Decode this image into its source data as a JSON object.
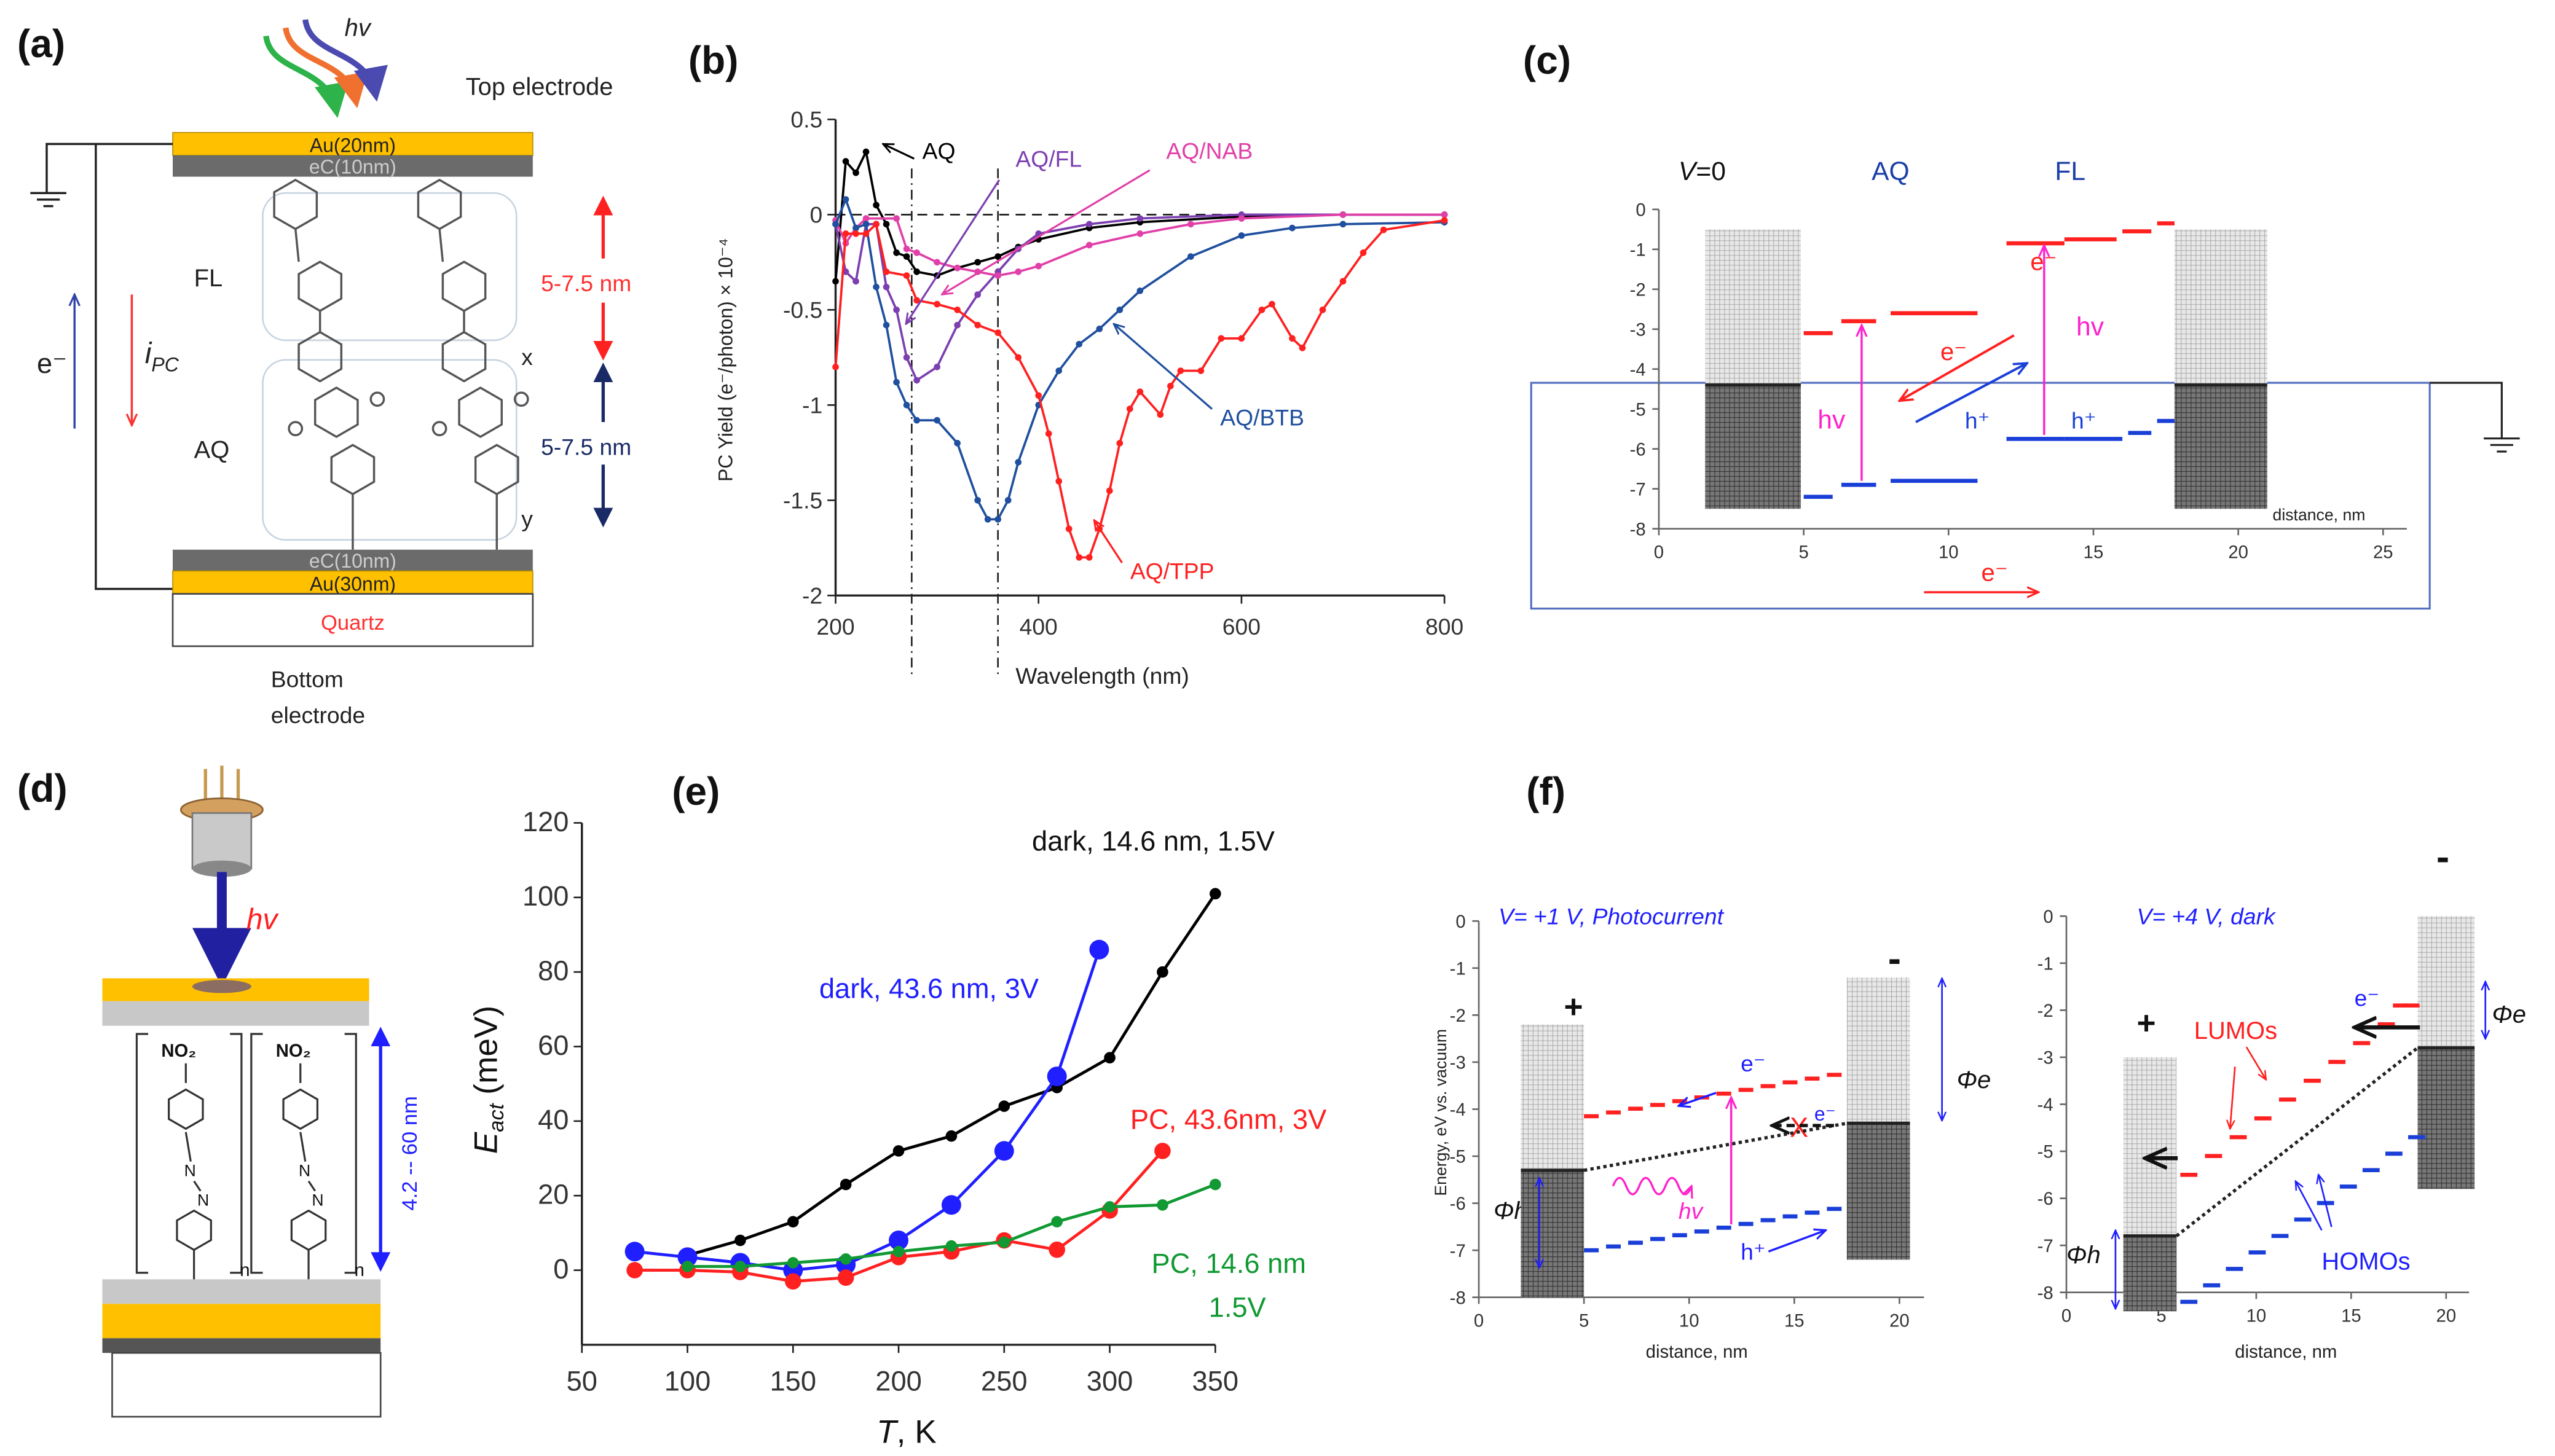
{
  "panels": {
    "a": {
      "label": "(a)",
      "hv": "hv",
      "top_electrode": "Top electrode",
      "au_top": "Au(20nm)",
      "ec_top": "eC(10nm)",
      "fl": "FL",
      "aq": "AQ",
      "ec_bottom": "eC(10nm)",
      "au_bottom": "Au(30nm)",
      "quartz": "Quartz",
      "bottom_electrode_1": "Bottom",
      "bottom_electrode_2": "electrode",
      "e_minus": "e⁻",
      "ipc": "i",
      "ipc_sub": "PC",
      "dim_top": "5-7.5 nm",
      "dim_bottom": "5-7.5 nm",
      "x": "x",
      "y": "y"
    },
    "b": {
      "label": "(b)"
    },
    "c": {
      "label": "(c)",
      "v": "V",
      "v0": "=0",
      "aq": "AQ",
      "fl": "FL",
      "e_minus": "e⁻",
      "hv": "hv",
      "h_plus": "h⁺",
      "xlabel": "distance, nm",
      "yticks": [
        "0",
        "-1",
        "-2",
        "-3",
        "-4",
        "-5",
        "-6",
        "-7",
        "-8"
      ],
      "xticks": [
        "0",
        "5",
        "10",
        "15",
        "20",
        "25"
      ]
    },
    "d": {
      "label": "(d)",
      "hv": "hv",
      "no2": "NO₂",
      "n_atom": "N",
      "n": "n",
      "dim": "4.2 -- 60 nm"
    },
    "e": {
      "label": "(e)"
    },
    "f": {
      "label": "(f)",
      "left": {
        "title": "V= +1 V, Photocurrent",
        "ylabel": "Energy, eV vs. vacuum",
        "xlabel": "distance, nm",
        "plus": "+",
        "minus": "-",
        "phi_h": "Φh",
        "phi_e": "Φe",
        "e_minus": "e⁻",
        "h_plus": "h⁺",
        "hv": "hv",
        "cross": "X",
        "yticks": [
          "0",
          "-1",
          "-2",
          "-3",
          "-4",
          "-5",
          "-6",
          "-7",
          "-8"
        ],
        "xticks": [
          "0",
          "5",
          "10",
          "15",
          "20"
        ]
      },
      "right": {
        "title": "V= +4 V, dark",
        "xlabel": "distance, nm",
        "plus": "+",
        "minus": "-",
        "phi_h": "Φh",
        "phi_e": "Φe",
        "e_minus": "e⁻",
        "lumos": "LUMOs",
        "homos": "HOMOs",
        "yticks": [
          "0",
          "-1",
          "-2",
          "-3",
          "-4",
          "-5",
          "-6",
          "-7",
          "-8"
        ],
        "xticks": [
          "0",
          "5",
          "10",
          "15",
          "20"
        ]
      }
    }
  },
  "colors": {
    "lumo": "#ff2020",
    "homo": "#1a3fd8",
    "gold": "#ffc000",
    "electrode_grey": "#6b6b6b",
    "magenta": "#ff22cc"
  },
  "chart_data": [
    {
      "type": "line",
      "panel": "b",
      "xlabel": "Wavelength (nm)",
      "ylabel": "PC Yield (e⁻/photon) × 10⁻⁴",
      "xlim": [
        200,
        800
      ],
      "ylim": [
        -2,
        0.5
      ],
      "xticks": [
        200,
        400,
        600,
        800
      ],
      "yticks": [
        0.5,
        0,
        -0.5,
        -1,
        -1.5,
        -2
      ],
      "reference_lines": {
        "horizontal": 0,
        "vertical": [
          275,
          360
        ]
      },
      "series": [
        {
          "name": "AQ",
          "color": "#000000",
          "points": [
            [
              200,
              -0.35
            ],
            [
              210,
              0.28
            ],
            [
              220,
              0.22
            ],
            [
              230,
              0.33
            ],
            [
              240,
              0.05
            ],
            [
              250,
              -0.05
            ],
            [
              260,
              -0.2
            ],
            [
              270,
              -0.22
            ],
            [
              280,
              -0.3
            ],
            [
              300,
              -0.32
            ],
            [
              320,
              -0.28
            ],
            [
              340,
              -0.25
            ],
            [
              360,
              -0.22
            ],
            [
              380,
              -0.17
            ],
            [
              400,
              -0.13
            ],
            [
              450,
              -0.07
            ],
            [
              500,
              -0.04
            ],
            [
              600,
              -0.01
            ],
            [
              700,
              0
            ],
            [
              800,
              0
            ]
          ]
        },
        {
          "name": "AQ/FL",
          "color": "#7b3fb0",
          "points": [
            [
              200,
              -0.05
            ],
            [
              210,
              -0.3
            ],
            [
              220,
              -0.35
            ],
            [
              230,
              -0.05
            ],
            [
              240,
              -0.05
            ],
            [
              250,
              -0.38
            ],
            [
              260,
              -0.5
            ],
            [
              270,
              -0.75
            ],
            [
              280,
              -0.87
            ],
            [
              300,
              -0.8
            ],
            [
              320,
              -0.58
            ],
            [
              340,
              -0.42
            ],
            [
              360,
              -0.3
            ],
            [
              380,
              -0.18
            ],
            [
              400,
              -0.1
            ],
            [
              450,
              -0.05
            ],
            [
              500,
              -0.02
            ],
            [
              600,
              0
            ],
            [
              800,
              0
            ]
          ]
        },
        {
          "name": "AQ/NAB",
          "color": "#e040a8",
          "points": [
            [
              200,
              -0.03
            ],
            [
              210,
              -0.15
            ],
            [
              220,
              -0.07
            ],
            [
              230,
              -0.02
            ],
            [
              260,
              -0.02
            ],
            [
              270,
              -0.18
            ],
            [
              280,
              -0.2
            ],
            [
              300,
              -0.25
            ],
            [
              320,
              -0.28
            ],
            [
              340,
              -0.3
            ],
            [
              360,
              -0.32
            ],
            [
              380,
              -0.3
            ],
            [
              400,
              -0.27
            ],
            [
              450,
              -0.16
            ],
            [
              500,
              -0.1
            ],
            [
              550,
              -0.05
            ],
            [
              600,
              -0.02
            ],
            [
              700,
              0
            ],
            [
              800,
              0
            ]
          ]
        },
        {
          "name": "AQ/BTB",
          "color": "#1f4f9e",
          "points": [
            [
              200,
              -0.05
            ],
            [
              210,
              0.08
            ],
            [
              220,
              -0.07
            ],
            [
              230,
              -0.05
            ],
            [
              240,
              -0.38
            ],
            [
              250,
              -0.58
            ],
            [
              260,
              -0.88
            ],
            [
              270,
              -1.0
            ],
            [
              280,
              -1.08
            ],
            [
              300,
              -1.08
            ],
            [
              320,
              -1.2
            ],
            [
              340,
              -1.5
            ],
            [
              350,
              -1.6
            ],
            [
              360,
              -1.6
            ],
            [
              370,
              -1.5
            ],
            [
              380,
              -1.3
            ],
            [
              400,
              -1.0
            ],
            [
              420,
              -0.82
            ],
            [
              440,
              -0.68
            ],
            [
              460,
              -0.6
            ],
            [
              480,
              -0.5
            ],
            [
              500,
              -0.4
            ],
            [
              550,
              -0.22
            ],
            [
              600,
              -0.11
            ],
            [
              650,
              -0.07
            ],
            [
              700,
              -0.05
            ],
            [
              800,
              -0.04
            ]
          ]
        },
        {
          "name": "AQ/TPP",
          "color": "#ff2020",
          "points": [
            [
              200,
              -0.8
            ],
            [
              210,
              -0.1
            ],
            [
              220,
              -0.1
            ],
            [
              230,
              -0.1
            ],
            [
              240,
              -0.05
            ],
            [
              250,
              -0.3
            ],
            [
              270,
              -0.32
            ],
            [
              280,
              -0.45
            ],
            [
              300,
              -0.47
            ],
            [
              320,
              -0.5
            ],
            [
              340,
              -0.58
            ],
            [
              360,
              -0.62
            ],
            [
              380,
              -0.75
            ],
            [
              400,
              -0.95
            ],
            [
              410,
              -1.15
            ],
            [
              420,
              -1.4
            ],
            [
              430,
              -1.65
            ],
            [
              440,
              -1.8
            ],
            [
              450,
              -1.8
            ],
            [
              460,
              -1.65
            ],
            [
              470,
              -1.45
            ],
            [
              480,
              -1.2
            ],
            [
              490,
              -1.02
            ],
            [
              500,
              -0.93
            ],
            [
              520,
              -1.05
            ],
            [
              530,
              -0.9
            ],
            [
              540,
              -0.82
            ],
            [
              560,
              -0.82
            ],
            [
              580,
              -0.65
            ],
            [
              600,
              -0.65
            ],
            [
              620,
              -0.5
            ],
            [
              630,
              -0.47
            ],
            [
              650,
              -0.65
            ],
            [
              660,
              -0.7
            ],
            [
              680,
              -0.5
            ],
            [
              700,
              -0.35
            ],
            [
              720,
              -0.2
            ],
            [
              740,
              -0.08
            ],
            [
              800,
              -0.03
            ]
          ]
        }
      ]
    },
    {
      "type": "line",
      "panel": "e",
      "xlabel": "T, K",
      "ylabel": "Eact (meV)",
      "xlim": [
        50,
        350
      ],
      "ylim": [
        -20,
        120
      ],
      "xticks": [
        50,
        100,
        150,
        200,
        250,
        300,
        350
      ],
      "yticks": [
        0,
        20,
        40,
        60,
        80,
        100,
        120
      ],
      "series": [
        {
          "name": "dark, 14.6 nm, 1.5V",
          "color": "#000000",
          "points": [
            [
              100,
              4
            ],
            [
              125,
              8
            ],
            [
              150,
              13
            ],
            [
              175,
              23
            ],
            [
              200,
              32
            ],
            [
              225,
              36
            ],
            [
              250,
              44
            ],
            [
              275,
              49
            ],
            [
              300,
              57
            ],
            [
              325,
              80
            ],
            [
              350,
              101
            ]
          ]
        },
        {
          "name": "dark, 43.6 nm, 3V",
          "color": "#1f1fff",
          "points": [
            [
              75,
              5
            ],
            [
              100,
              3.5
            ],
            [
              125,
              2
            ],
            [
              150,
              0
            ],
            [
              175,
              1.5
            ],
            [
              200,
              8
            ],
            [
              225,
              17.5
            ],
            [
              250,
              32
            ],
            [
              275,
              52
            ],
            [
              295,
              86
            ]
          ]
        },
        {
          "name": "PC, 43.6nm, 3V",
          "color": "#ff2020",
          "points": [
            [
              75,
              0
            ],
            [
              100,
              0
            ],
            [
              125,
              -0.5
            ],
            [
              150,
              -3
            ],
            [
              175,
              -2
            ],
            [
              200,
              3.5
            ],
            [
              225,
              5
            ],
            [
              250,
              8
            ],
            [
              275,
              5.5
            ],
            [
              300,
              16
            ],
            [
              325,
              32
            ]
          ]
        },
        {
          "name": "PC, 14.6 nm 1.5V",
          "name_line1": "PC, 14.6 nm",
          "name_line2": "1.5V",
          "color": "#119933",
          "points": [
            [
              100,
              1
            ],
            [
              125,
              1
            ],
            [
              150,
              2
            ],
            [
              175,
              3
            ],
            [
              200,
              5
            ],
            [
              225,
              6.5
            ],
            [
              250,
              7.5
            ],
            [
              275,
              13
            ],
            [
              300,
              17
            ],
            [
              325,
              17.5
            ],
            [
              350,
              23
            ]
          ]
        }
      ]
    }
  ]
}
